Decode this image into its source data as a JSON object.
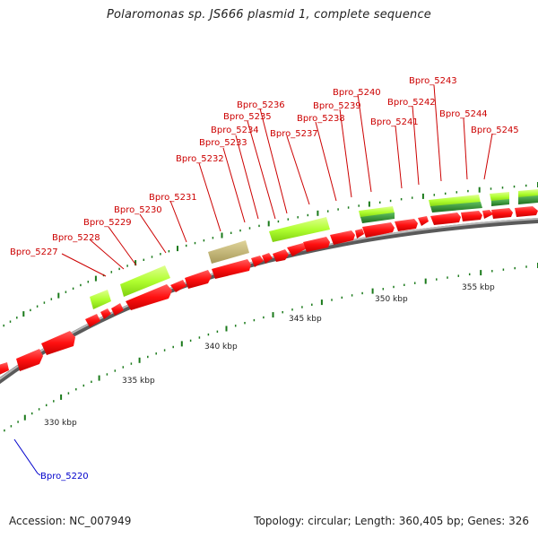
{
  "title": "Polaromonas sp. JS666 plasmid 1, complete sequence",
  "footer": {
    "accession": "Accession: NC_007949",
    "summary": "Topology: circular; Length: 360,405 bp; Genes: 326"
  },
  "ticks": [
    {
      "label": "330 kbp"
    },
    {
      "label": "335 kbp"
    },
    {
      "label": "340 kbp"
    },
    {
      "label": "345 kbp"
    },
    {
      "label": "350 kbp"
    },
    {
      "label": "355 kbp"
    }
  ],
  "genes": [
    {
      "name": "Bpro_5220",
      "color": "#0000cc"
    },
    {
      "name": "Bpro_5227",
      "color": "#cc0000"
    },
    {
      "name": "Bpro_5228",
      "color": "#cc0000"
    },
    {
      "name": "Bpro_5229",
      "color": "#cc0000"
    },
    {
      "name": "Bpro_5230",
      "color": "#cc0000"
    },
    {
      "name": "Bpro_5231",
      "color": "#cc0000"
    },
    {
      "name": "Bpro_5232",
      "color": "#cc0000"
    },
    {
      "name": "Bpro_5233",
      "color": "#cc0000"
    },
    {
      "name": "Bpro_5234",
      "color": "#cc0000"
    },
    {
      "name": "Bpro_5235",
      "color": "#cc0000"
    },
    {
      "name": "Bpro_5236",
      "color": "#cc0000"
    },
    {
      "name": "Bpro_5237",
      "color": "#cc0000"
    },
    {
      "name": "Bpro_5238",
      "color": "#cc0000"
    },
    {
      "name": "Bpro_5239",
      "color": "#cc0000"
    },
    {
      "name": "Bpro_5240",
      "color": "#cc0000"
    },
    {
      "name": "Bpro_5241",
      "color": "#cc0000"
    },
    {
      "name": "Bpro_5242",
      "color": "#cc0000"
    },
    {
      "name": "Bpro_5243",
      "color": "#cc0000"
    },
    {
      "name": "Bpro_5244",
      "color": "#cc0000"
    },
    {
      "name": "Bpro_5245",
      "color": "#cc0000"
    }
  ],
  "colors": {
    "backbone": "#808080",
    "cds": "#ff1a1a",
    "feature_light_green": "#b6ff3a",
    "feature_dark_green": "#2e8b2e",
    "feature_khaki": "#c8b878",
    "tick": "#1a7a1a"
  }
}
